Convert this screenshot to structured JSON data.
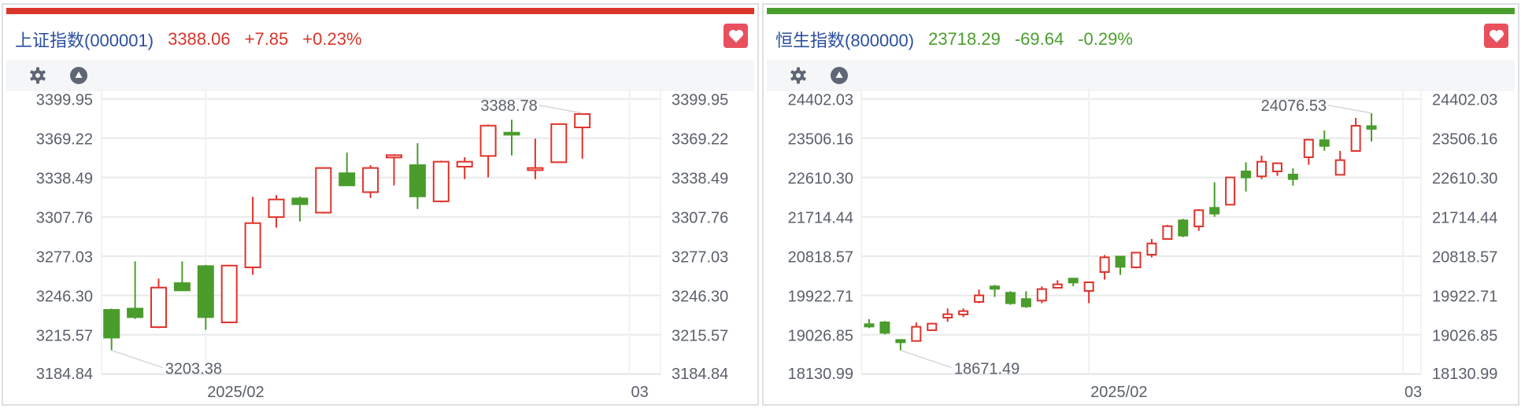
{
  "colors": {
    "up": "#e0322b",
    "down": "#4a9c2c",
    "title": "#2b4f9e",
    "fav": "#e9505e",
    "grid": "#e8e9ea",
    "axis_text": "#5a606b"
  },
  "panels": [
    {
      "name": "上证指数(000001)",
      "price": "3388.06",
      "change": "+7.85",
      "change_pct": "+0.23%",
      "trend_color": "#d9352a",
      "toolbar": {
        "settings_icon": "gear-icon",
        "collapse_icon": "triangle-up-circle-icon"
      },
      "fav_icon": "heart-icon"
    },
    {
      "name": "恒生指数(800000)",
      "price": "23718.29",
      "change": "-69.64",
      "change_pct": "-0.29%",
      "trend_color": "#4a9e2d",
      "toolbar": {
        "settings_icon": "gear-icon",
        "collapse_icon": "triangle-up-circle-icon"
      },
      "fav_icon": "heart-icon"
    }
  ],
  "chart_data": [
    {
      "type": "candlestick",
      "ohlc_order": [
        "open",
        "high",
        "low",
        "close"
      ],
      "y_ticks": [
        "3399.95",
        "3369.22",
        "3338.49",
        "3307.76",
        "3277.03",
        "3246.30",
        "3215.57",
        "3184.84"
      ],
      "ylim": [
        3184.84,
        3399.95
      ],
      "x_ticks": [
        {
          "label": "2025/02",
          "index": 4
        },
        {
          "label": "03",
          "index": 22
        }
      ],
      "grid": true,
      "annotations": {
        "high": "3388.78",
        "high_index": 20,
        "low": "3203.38",
        "low_index": 0
      },
      "candles": [
        [
          3235.0,
          3236.0,
          3203.38,
          3213.3
        ],
        [
          3236.0,
          3272.9,
          3227.9,
          3229.3
        ],
        [
          3221.5,
          3259.4,
          3220.7,
          3252.4
        ],
        [
          3255.9,
          3272.9,
          3250.2,
          3250.2
        ],
        [
          3269.2,
          3270.2,
          3219.4,
          3229.3
        ],
        [
          3225.2,
          3270.2,
          3224.6,
          3269.6
        ],
        [
          3268.2,
          3323.3,
          3262.4,
          3302.8
        ],
        [
          3307.5,
          3324.6,
          3299.3,
          3321.3
        ],
        [
          3322.1,
          3323.5,
          3304.1,
          3317.6
        ],
        [
          3311.0,
          3345.9,
          3310.2,
          3345.9
        ],
        [
          3341.8,
          3357.9,
          3332.3,
          3332.3
        ],
        [
          3327.0,
          3348.1,
          3322.5,
          3345.9
        ],
        [
          3354.1,
          3356.7,
          3332.3,
          3355.9
        ],
        [
          3348.1,
          3365.3,
          3313.9,
          3323.7
        ],
        [
          3319.8,
          3351.6,
          3319.0,
          3350.8
        ],
        [
          3346.9,
          3354.3,
          3337.2,
          3350.8
        ],
        [
          3355.3,
          3379.9,
          3338.5,
          3379.0
        ],
        [
          3373.5,
          3383.6,
          3355.7,
          3371.9
        ],
        [
          3344.2,
          3368.8,
          3337.2,
          3345.9
        ],
        [
          3350.4,
          3380.21,
          3350.4,
          3380.21
        ],
        [
          3377.6,
          3388.78,
          3353.2,
          3388.06
        ]
      ]
    },
    {
      "type": "candlestick",
      "ohlc_order": [
        "open",
        "high",
        "low",
        "close"
      ],
      "y_ticks": [
        "24402.03",
        "23506.16",
        "22610.30",
        "21714.44",
        "20818.57",
        "19922.71",
        "19026.85",
        "18130.99"
      ],
      "ylim": [
        18130.99,
        24402.03
      ],
      "x_ticks": [
        {
          "label": "2025/02",
          "index": 14
        },
        {
          "label": "03",
          "index": 34
        }
      ],
      "grid": true,
      "annotations": {
        "high": "24076.53",
        "high_index": 32,
        "low": "18671.49",
        "low_index": 2
      },
      "candles": [
        [
          19267,
          19380,
          19177,
          19213
        ],
        [
          19308,
          19338,
          19034,
          19069
        ],
        [
          18908,
          18908,
          18671.49,
          18855
        ],
        [
          18884,
          19303,
          18884,
          19207
        ],
        [
          19129,
          19297,
          19129,
          19279
        ],
        [
          19416,
          19625,
          19320,
          19494
        ],
        [
          19488,
          19625,
          19428,
          19565
        ],
        [
          19774,
          20055,
          19745,
          19924
        ],
        [
          20127,
          20163,
          19888,
          20073
        ],
        [
          19983,
          20019,
          19709,
          19745
        ],
        [
          19840,
          20019,
          19637,
          19673
        ],
        [
          19804,
          20127,
          19745,
          20067
        ],
        [
          20097,
          20270,
          20097,
          20175
        ],
        [
          20306,
          20306,
          20133,
          20216
        ],
        [
          20025,
          20234,
          19745,
          20222
        ],
        [
          20455,
          20843,
          20282,
          20790
        ],
        [
          20808,
          20808,
          20389,
          20574
        ],
        [
          20562,
          20897,
          20539,
          20897
        ],
        [
          20849,
          21208,
          20790,
          21106
        ],
        [
          21208,
          21530,
          21208,
          21500
        ],
        [
          21632,
          21667,
          21250,
          21285
        ],
        [
          21494,
          21888,
          21393,
          21864
        ],
        [
          21918,
          22497,
          21715,
          21787
        ],
        [
          21990,
          22611,
          21990,
          22611
        ],
        [
          22748,
          22957,
          22289,
          22611
        ],
        [
          22635,
          23107,
          22575,
          22969
        ],
        [
          22748,
          22957,
          22647,
          22934
        ],
        [
          22677,
          22820,
          22426,
          22575
        ],
        [
          23071,
          23471,
          22898,
          23471
        ],
        [
          23459,
          23680,
          23220,
          23328
        ],
        [
          22671,
          23214,
          22671,
          23005
        ],
        [
          23214,
          23967,
          23214,
          23787.93
        ],
        [
          23780,
          24076.53,
          23429,
          23718.29
        ]
      ]
    }
  ]
}
